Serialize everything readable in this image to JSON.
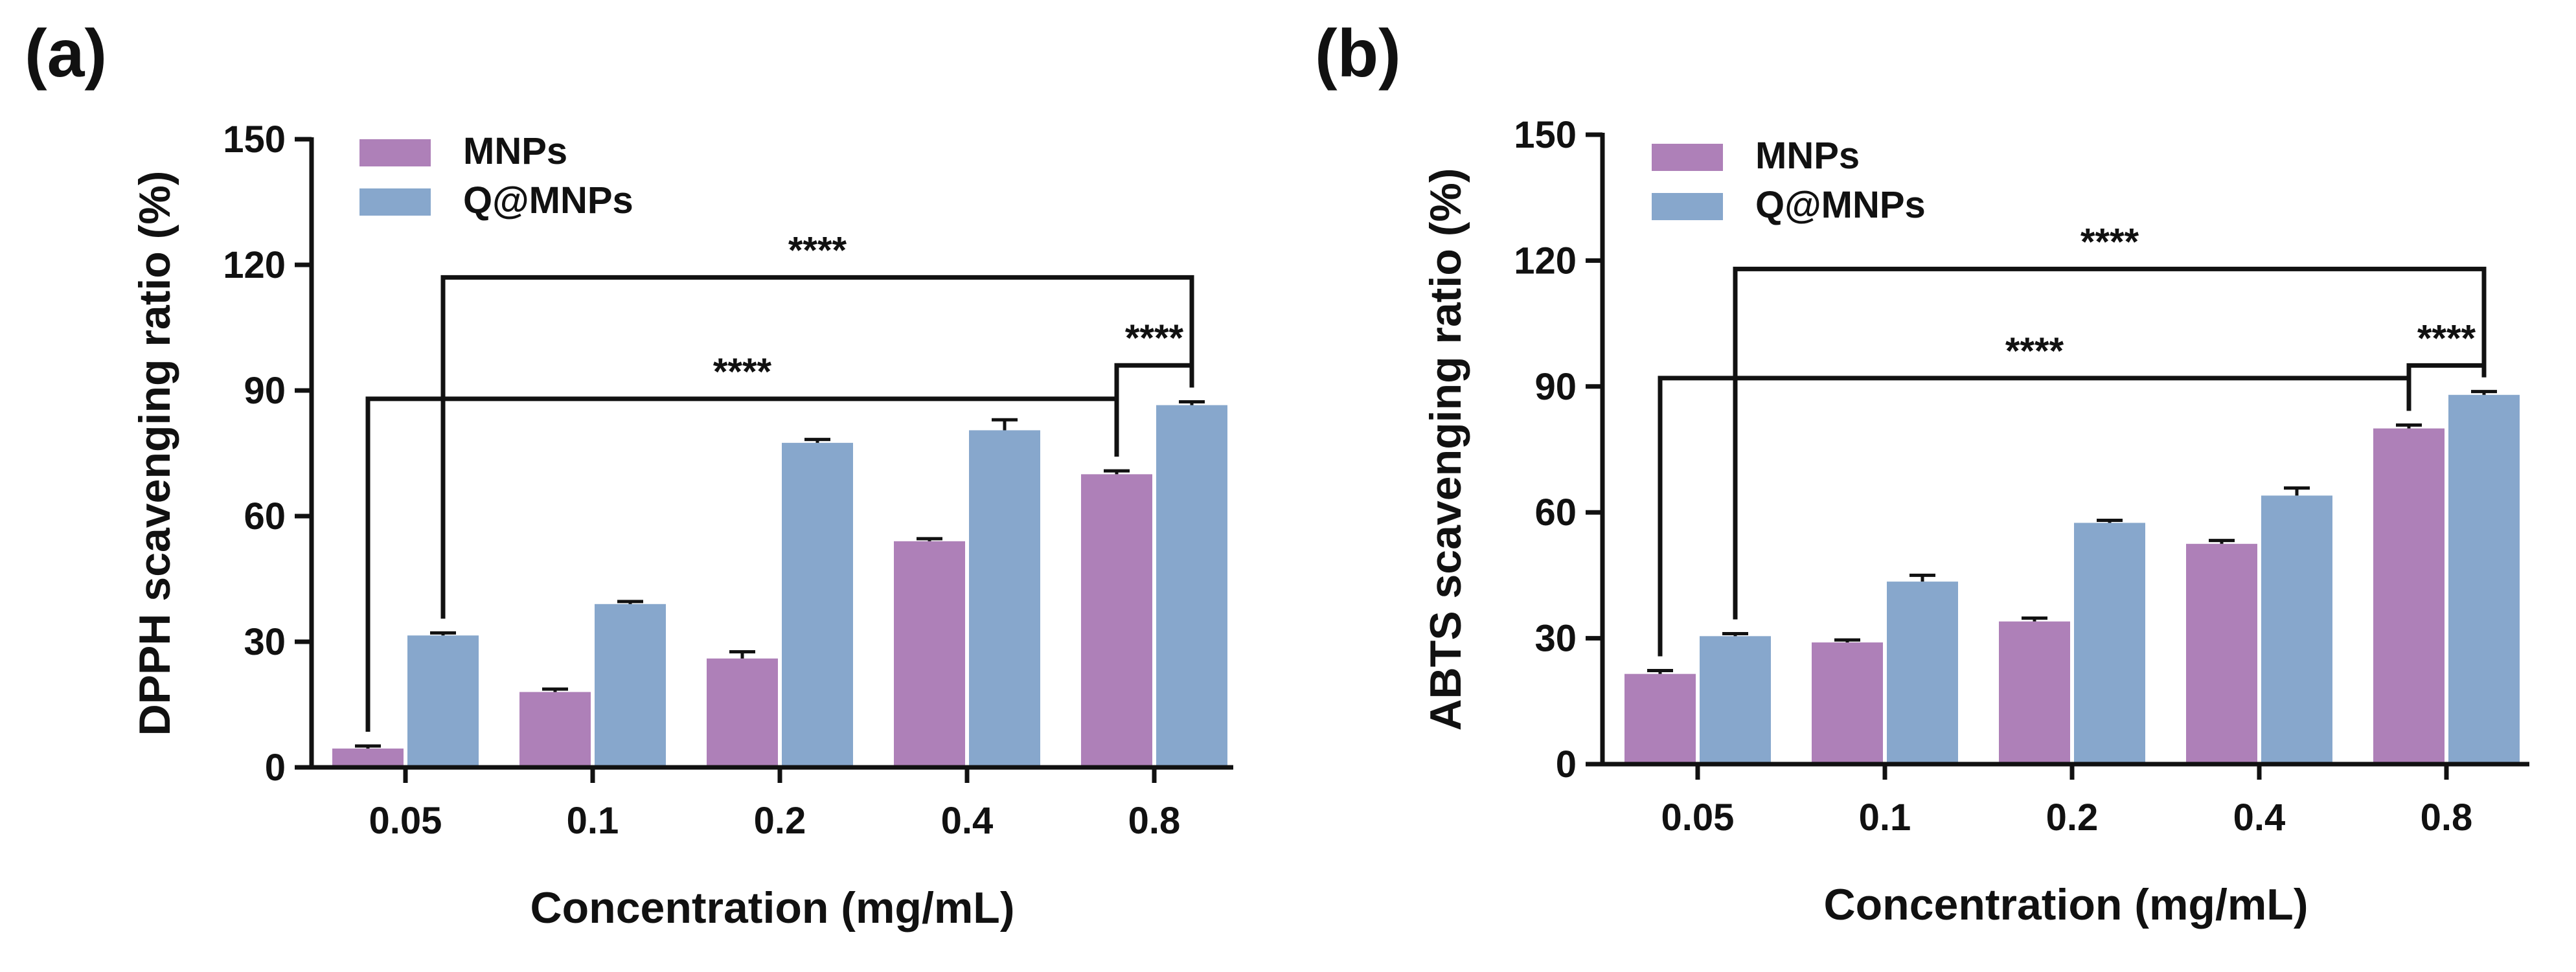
{
  "chart_data": [
    {
      "type": "bar",
      "panel_label": "(a)",
      "categories": [
        "0.05",
        "0.1",
        "0.2",
        "0.4",
        "0.8"
      ],
      "series": [
        {
          "name": "MNPs",
          "color": "#AE80B8",
          "values": [
            4.5,
            18,
            26,
            54,
            70
          ],
          "errors": [
            0.6,
            0.7,
            1.6,
            0.6,
            0.8
          ]
        },
        {
          "name": "Q@MNPs",
          "color": "#87A7CC",
          "values": [
            31.5,
            39,
            77.5,
            80.5,
            86.5
          ],
          "errors": [
            0.6,
            0.6,
            0.8,
            2.5,
            0.8
          ]
        }
      ],
      "ylabel": "DPPH  scavenging ratio (%)",
      "xlabel": "Concentration (mg/mL)",
      "ylim": [
        0,
        150
      ],
      "yticks": [
        0,
        30,
        60,
        90,
        120,
        150
      ],
      "legend": {
        "position": "top-left",
        "labels": [
          "MNPs",
          "Q@MNPs"
        ]
      },
      "annotations": [
        {
          "text": "****",
          "from": {
            "category": "0.05",
            "series": "Q@MNPs"
          },
          "to": {
            "category": "0.8",
            "series": "Q@MNPs"
          },
          "y": 117
        },
        {
          "text": "****",
          "from": {
            "category": "0.05",
            "series": "MNPs"
          },
          "to": {
            "category": "0.8",
            "series": "MNPs"
          },
          "y": 88
        },
        {
          "text": "****",
          "from": {
            "category": "0.8",
            "series": "MNPs"
          },
          "to": {
            "category": "0.8",
            "series": "Q@MNPs"
          },
          "y": 96
        }
      ]
    },
    {
      "type": "bar",
      "panel_label": "(b)",
      "categories": [
        "0.05",
        "0.1",
        "0.2",
        "0.4",
        "0.8"
      ],
      "series": [
        {
          "name": "MNPs",
          "color": "#AE80B8",
          "values": [
            21.5,
            29,
            34,
            52.5,
            80
          ],
          "errors": [
            0.8,
            0.6,
            0.8,
            0.8,
            0.8
          ]
        },
        {
          "name": "Q@MNPs",
          "color": "#87A7CC",
          "values": [
            30.5,
            43.5,
            57.5,
            64,
            88
          ],
          "errors": [
            0.6,
            1.5,
            0.6,
            1.8,
            0.8
          ]
        }
      ],
      "ylabel": "ABTS  scavenging ratio (%)",
      "xlabel": "Concentration (mg/mL)",
      "ylim": [
        0,
        150
      ],
      "yticks": [
        0,
        30,
        60,
        90,
        120,
        150
      ],
      "legend": {
        "position": "top-left",
        "labels": [
          "MNPs",
          "Q@MNPs"
        ]
      },
      "annotations": [
        {
          "text": "****",
          "from": {
            "category": "0.05",
            "series": "Q@MNPs"
          },
          "to": {
            "category": "0.8",
            "series": "Q@MNPs"
          },
          "y": 118
        },
        {
          "text": "****",
          "from": {
            "category": "0.05",
            "series": "MNPs"
          },
          "to": {
            "category": "0.8",
            "series": "MNPs"
          },
          "y": 92
        },
        {
          "text": "****",
          "from": {
            "category": "0.8",
            "series": "MNPs"
          },
          "to": {
            "category": "0.8",
            "series": "Q@MNPs"
          },
          "y": 95
        }
      ]
    }
  ]
}
